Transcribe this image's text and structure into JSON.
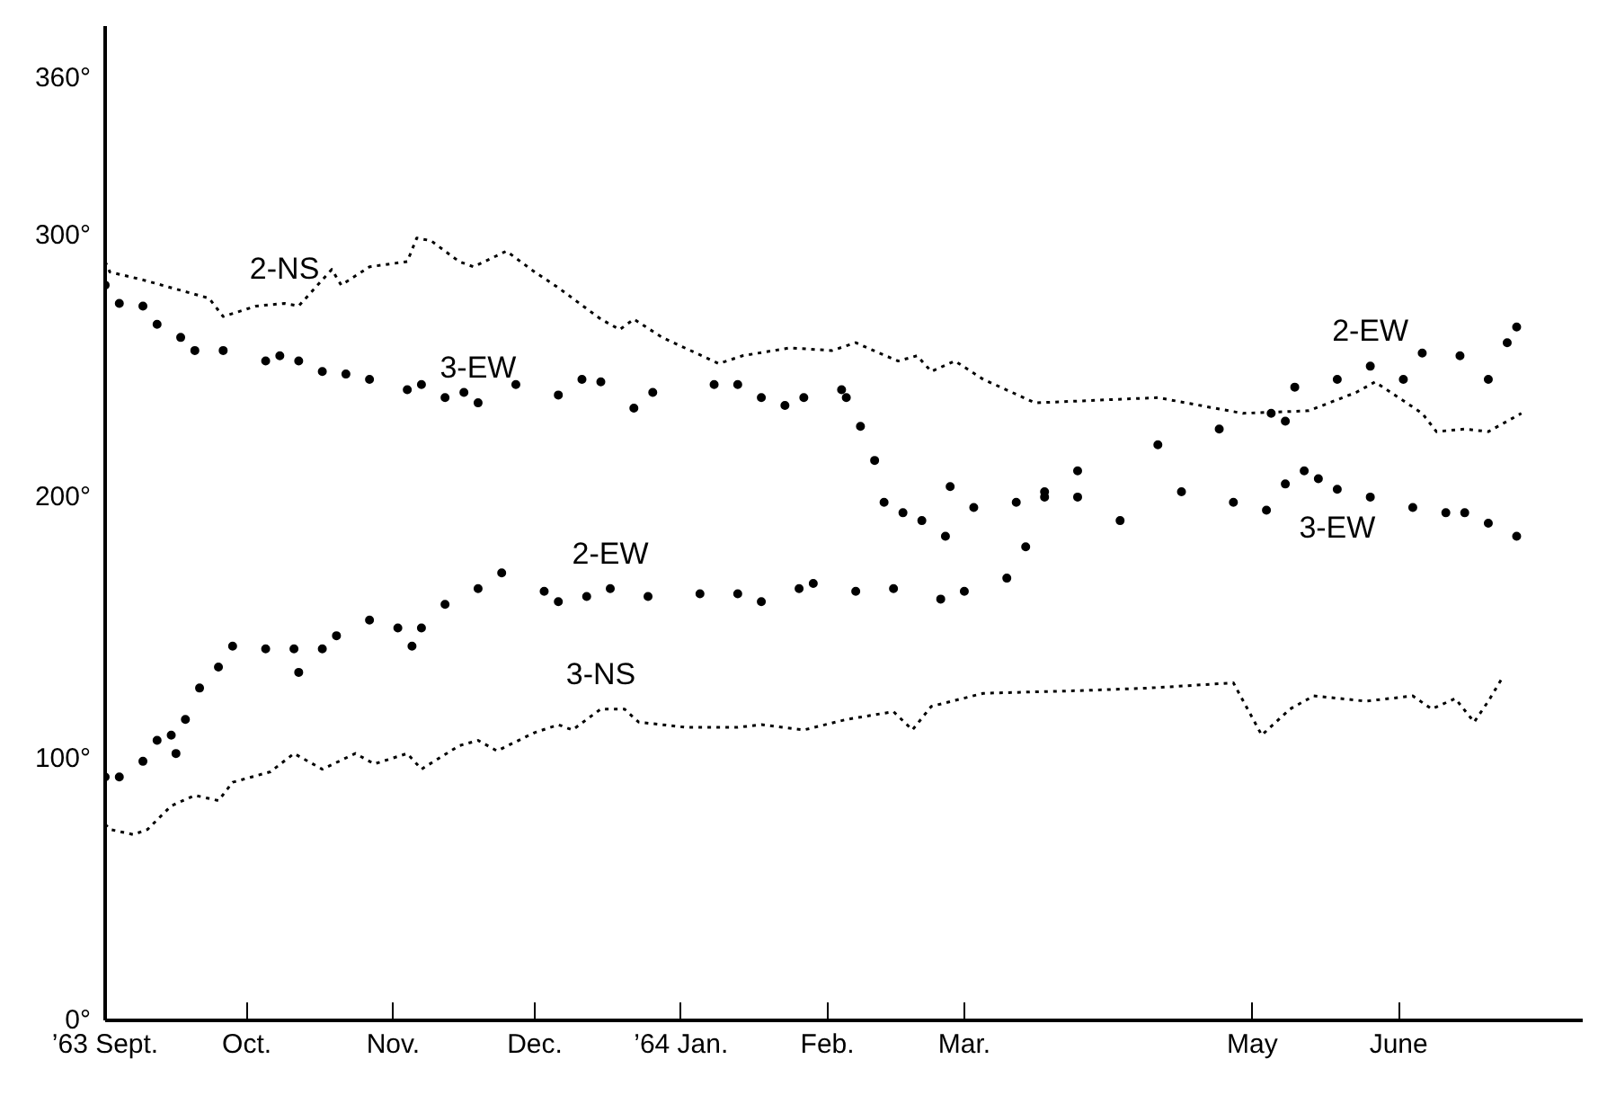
{
  "chart_data": {
    "type": "line",
    "xlim": [
      "1963-09-01",
      "1964-07-10"
    ],
    "ylim": [
      0,
      380
    ],
    "xticks": [
      {
        "value": "1963-09-01",
        "label": "’63 Sept."
      },
      {
        "value": "1963-10-01",
        "label": "Oct."
      },
      {
        "value": "1963-11-01",
        "label": "Nov."
      },
      {
        "value": "1963-12-01",
        "label": "Dec."
      },
      {
        "value": "1964-01-01",
        "label": "’64 Jan."
      },
      {
        "value": "1964-02-01",
        "label": "Feb."
      },
      {
        "value": "1964-03-01",
        "label": "Mar."
      },
      {
        "value": "1964-05-01",
        "label": "May"
      },
      {
        "value": "1964-06-01",
        "label": "June"
      }
    ],
    "yticks": [
      {
        "value": 0,
        "label": "0°"
      },
      {
        "value": 100,
        "label": "100°"
      },
      {
        "value": 200,
        "label": "200°"
      },
      {
        "value": 300,
        "label": "300°"
      },
      {
        "value": 360,
        "label": "360°"
      }
    ],
    "grid": false,
    "series": [
      {
        "line_style": "dotted",
        "color": "#000000",
        "x": [
          "1963-09-01",
          "1963-09-02",
          "1963-09-09",
          "1963-09-17",
          "1963-09-23",
          "1963-09-26",
          "1963-10-03",
          "1963-10-09",
          "1963-10-12",
          "1963-10-19",
          "1963-10-21",
          "1963-10-27",
          "1963-11-04",
          "1963-11-06",
          "1963-11-09",
          "1963-11-15",
          "1963-11-18",
          "1963-11-25",
          "1963-12-01",
          "1963-12-06",
          "1963-12-15",
          "1963-12-19",
          "1963-12-22",
          "1963-12-28",
          "1964-01-09",
          "1964-01-14",
          "1964-01-24",
          "1964-02-02",
          "1964-02-07",
          "1964-02-12",
          "1964-02-16",
          "1964-02-20",
          "1964-02-23",
          "1964-02-28",
          "1964-03-05",
          "1964-03-16",
          "1964-04-11",
          "1964-04-29",
          "1964-05-13",
          "1964-05-23",
          "1964-05-27",
          "1964-06-06",
          "1964-06-09",
          "1964-06-15",
          "1964-06-20",
          "1964-06-27"
        ],
        "values": [
          290,
          286,
          283,
          279,
          276,
          269,
          273,
          274,
          273,
          287,
          281,
          288,
          290,
          299,
          298,
          290,
          288,
          294,
          286,
          280,
          268,
          264,
          268,
          261,
          251,
          254,
          257,
          256,
          259,
          255,
          252,
          254,
          248,
          252,
          245,
          236,
          238,
          232,
          233,
          240,
          244,
          232,
          225,
          226,
          225,
          232
        ]
      },
      {
        "type": "scatter",
        "marker": "circle",
        "color": "#000000",
        "x": [
          "1963-09-01",
          "1963-09-04",
          "1963-09-09",
          "1963-09-12",
          "1963-09-17",
          "1963-09-20",
          "1963-09-26",
          "1963-10-05",
          "1963-10-08",
          "1963-10-12",
          "1963-10-17",
          "1963-10-22",
          "1963-10-27",
          "1963-11-04",
          "1963-11-07",
          "1963-11-12",
          "1963-11-16",
          "1963-11-19",
          "1963-11-27",
          "1963-12-06",
          "1963-12-11",
          "1963-12-15",
          "1963-12-22",
          "1963-12-26",
          "1964-01-08",
          "1964-01-13",
          "1964-01-18",
          "1964-01-23",
          "1964-01-27",
          "1964-02-04",
          "1964-02-05",
          "1964-02-08",
          "1964-02-11",
          "1964-02-13",
          "1964-02-17",
          "1964-02-21",
          "1964-02-26",
          "1964-02-27",
          "1964-03-03",
          "1964-03-12",
          "1964-03-18",
          "1964-03-25",
          "1964-04-03",
          "1964-04-16",
          "1964-04-27",
          "1964-05-04",
          "1964-05-08",
          "1964-05-12",
          "1964-05-15",
          "1964-05-19",
          "1964-05-26",
          "1964-06-04",
          "1964-06-11",
          "1964-06-15",
          "1964-06-20",
          "1964-06-26"
        ],
        "values": [
          281,
          274,
          273,
          266,
          261,
          256,
          256,
          252,
          254,
          252,
          248,
          247,
          245,
          241,
          243,
          238,
          240,
          236,
          243,
          239,
          245,
          244,
          234,
          240,
          243,
          243,
          238,
          235,
          238,
          241,
          238,
          227,
          214,
          198,
          194,
          191,
          185,
          204,
          196,
          198,
          202,
          200,
          191,
          202,
          198,
          195,
          205,
          210,
          207,
          203,
          200,
          196,
          194,
          194,
          190,
          185
        ]
      },
      {
        "type": "scatter",
        "marker": "circle",
        "color": "#000000",
        "x": [
          "1963-09-01",
          "1963-09-04",
          "1963-09-09",
          "1963-09-12",
          "1963-09-15",
          "1963-09-16",
          "1963-09-18",
          "1963-09-21",
          "1963-09-25",
          "1963-09-28",
          "1963-10-05",
          "1963-10-11",
          "1963-10-12",
          "1963-10-17",
          "1963-10-20",
          "1963-10-27",
          "1963-11-02",
          "1963-11-05",
          "1963-11-07",
          "1963-11-12",
          "1963-11-19",
          "1963-11-24",
          "1963-12-03",
          "1963-12-06",
          "1963-12-12",
          "1963-12-17",
          "1963-12-25",
          "1964-01-05",
          "1964-01-13",
          "1964-01-18",
          "1964-01-26",
          "1964-01-29",
          "1964-02-07",
          "1964-02-15",
          "1964-02-25",
          "1964-03-01",
          "1964-03-10",
          "1964-03-14",
          "1964-03-18",
          "1964-03-25",
          "1964-04-11",
          "1964-04-24",
          "1964-05-05",
          "1964-05-08",
          "1964-05-10",
          "1964-05-19",
          "1964-05-26",
          "1964-06-02",
          "1964-06-06",
          "1964-06-14",
          "1964-06-20",
          "1964-06-24",
          "1964-06-26"
        ],
        "values": [
          93,
          93,
          99,
          107,
          109,
          102,
          115,
          127,
          135,
          143,
          142,
          142,
          133,
          142,
          147,
          153,
          150,
          143,
          150,
          159,
          165,
          171,
          164,
          160,
          162,
          165,
          162,
          163,
          163,
          160,
          165,
          167,
          164,
          165,
          161,
          164,
          169,
          181,
          200,
          210,
          220,
          226,
          232,
          229,
          242,
          245,
          250,
          245,
          255,
          254,
          245,
          259,
          265
        ]
      },
      {
        "line_style": "dotted",
        "color": "#000000",
        "x": [
          "1963-09-01",
          "1963-09-02",
          "1963-09-07",
          "1963-09-10",
          "1963-09-15",
          "1963-09-20",
          "1963-09-25",
          "1963-09-28",
          "1963-10-06",
          "1963-10-11",
          "1963-10-17",
          "1963-10-24",
          "1963-10-28",
          "1963-11-04",
          "1963-11-07",
          "1963-11-15",
          "1963-11-19",
          "1963-11-23",
          "1963-12-01",
          "1963-12-06",
          "1963-12-09",
          "1963-12-15",
          "1963-12-20",
          "1963-12-23",
          "1964-01-02",
          "1964-01-13",
          "1964-01-18",
          "1964-01-27",
          "1964-02-05",
          "1964-02-15",
          "1964-02-19",
          "1964-02-23",
          "1964-03-05",
          "1964-03-25",
          "1964-04-09",
          "1964-04-27",
          "1964-05-03",
          "1964-05-09",
          "1964-05-14",
          "1964-05-25",
          "1964-06-04",
          "1964-06-08",
          "1964-06-13",
          "1964-06-17",
          "1964-06-20",
          "1964-06-23"
        ],
        "values": [
          75,
          73,
          71,
          73,
          82,
          86,
          84,
          91,
          95,
          102,
          96,
          102,
          98,
          102,
          96,
          105,
          107,
          103,
          110,
          113,
          111,
          119,
          119,
          114,
          112,
          112,
          113,
          111,
          115,
          118,
          111,
          120,
          125,
          126,
          127,
          129,
          109,
          119,
          124,
          122,
          124,
          119,
          123,
          114,
          122,
          131
        ]
      }
    ],
    "annotations": [
      {
        "text": "2-NS",
        "x": "1963-10-09",
        "y": 274
      },
      {
        "text": "3-EW",
        "x": "1963-11-19",
        "y": 236
      },
      {
        "text": "2-EW",
        "x": "1963-12-17",
        "y": 165
      },
      {
        "text": "3-NS",
        "x": "1963-12-15",
        "y": 119
      },
      {
        "text": "2-EW",
        "x": "1964-05-26",
        "y": 250
      },
      {
        "text": "3-EW",
        "x": "1964-05-19",
        "y": 203
      }
    ]
  }
}
